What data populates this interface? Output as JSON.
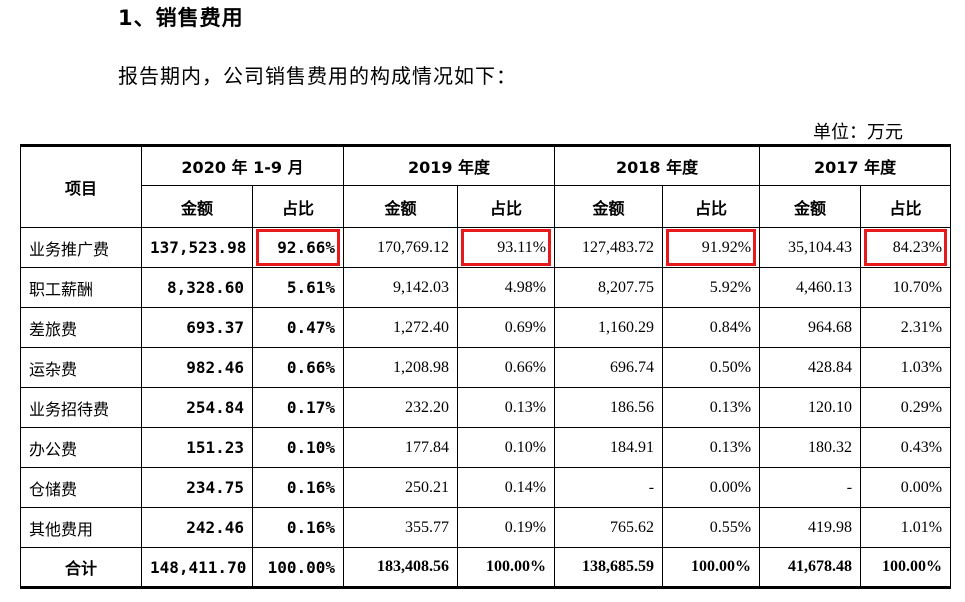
{
  "heading": "1、销售费用",
  "intro": "报告期内，公司销售费用的构成情况如下：",
  "unit": "单位：万元",
  "table": {
    "item_header": "项目",
    "periods": [
      "2020 年 1-9 月",
      "2019 年度",
      "2018 年度",
      "2017 年度"
    ],
    "amount_label": "金额",
    "ratio_label": "占比",
    "rows": [
      {
        "name": "业务推广费",
        "values": [
          "137,523.98",
          "92.66%",
          "170,769.12",
          "93.11%",
          "127,483.72",
          "91.92%",
          "35,104.43",
          "84.23%"
        ]
      },
      {
        "name": "职工薪酬",
        "values": [
          "8,328.60",
          "5.61%",
          "9,142.03",
          "4.98%",
          "8,207.75",
          "5.92%",
          "4,460.13",
          "10.70%"
        ]
      },
      {
        "name": "差旅费",
        "values": [
          "693.37",
          "0.47%",
          "1,272.40",
          "0.69%",
          "1,160.29",
          "0.84%",
          "964.68",
          "2.31%"
        ]
      },
      {
        "name": "运杂费",
        "values": [
          "982.46",
          "0.66%",
          "1,208.98",
          "0.66%",
          "696.74",
          "0.50%",
          "428.84",
          "1.03%"
        ]
      },
      {
        "name": "业务招待费",
        "values": [
          "254.84",
          "0.17%",
          "232.20",
          "0.13%",
          "186.56",
          "0.13%",
          "120.10",
          "0.29%"
        ]
      },
      {
        "name": "办公费",
        "values": [
          "151.23",
          "0.10%",
          "177.84",
          "0.10%",
          "184.91",
          "0.13%",
          "180.32",
          "0.43%"
        ]
      },
      {
        "name": "仓储费",
        "values": [
          "234.75",
          "0.16%",
          "250.21",
          "0.14%",
          "-",
          "0.00%",
          "-",
          "0.00%"
        ]
      },
      {
        "name": "其他费用",
        "values": [
          "242.46",
          "0.16%",
          "355.77",
          "0.19%",
          "765.62",
          "0.55%",
          "419.98",
          "1.01%"
        ]
      }
    ],
    "total": {
      "name": "合计",
      "values": [
        "148,411.70",
        "100.00%",
        "183,408.56",
        "100.00%",
        "138,685.59",
        "100.00%",
        "41,678.48",
        "100.00%"
      ]
    }
  },
  "highlight_color": "#e8191a"
}
